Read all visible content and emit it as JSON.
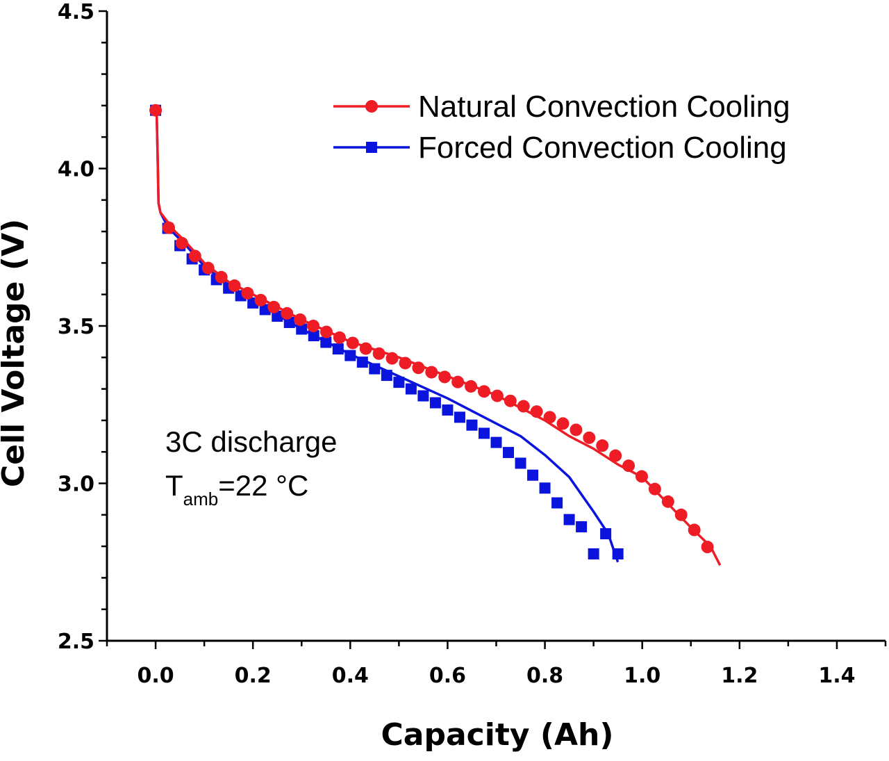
{
  "chart_data": {
    "type": "line",
    "xlabel": "Capacity (Ah)",
    "ylabel": "Cell Voltage (V)",
    "xlim": [
      -0.1,
      1.5
    ],
    "ylim": [
      2.5,
      4.5
    ],
    "x_ticks": [
      0.0,
      0.2,
      0.4,
      0.6,
      0.8,
      1.0,
      1.2,
      1.4
    ],
    "x_tick_labels": [
      "0.0",
      "0.2",
      "0.4",
      "0.6",
      "0.8",
      "1.0",
      "1.2",
      "1.4"
    ],
    "y_ticks": [
      2.5,
      3.0,
      3.5,
      4.0,
      4.5
    ],
    "y_tick_labels": [
      "2.5",
      "3.0",
      "3.5",
      "4.0",
      "4.5"
    ],
    "grid": false,
    "legend_position": "top-right",
    "annotation": {
      "line1": "3C discharge",
      "line2_main": "T",
      "line2_sub": "amb",
      "line2_rest": "=22 °C"
    },
    "series": [
      {
        "name": "Natural Convection Cooling",
        "color": "#ee1c25",
        "marker": "circle",
        "line_x": [
          0.0,
          0.002,
          0.004,
          0.006,
          0.01,
          0.02,
          0.04,
          0.06,
          0.1,
          0.15,
          0.2,
          0.3,
          0.4,
          0.5,
          0.6,
          0.7,
          0.8,
          0.85,
          0.9,
          0.95,
          1.0,
          1.05,
          1.1,
          1.14,
          1.16
        ],
        "line_y": [
          4.19,
          4.19,
          4.05,
          3.89,
          3.86,
          3.84,
          3.8,
          3.77,
          3.7,
          3.64,
          3.6,
          3.52,
          3.45,
          3.4,
          3.34,
          3.28,
          3.2,
          3.15,
          3.11,
          3.06,
          3.02,
          2.94,
          2.86,
          2.8,
          2.74
        ],
        "marker_x": [
          0.0,
          0.027,
          0.054,
          0.081,
          0.108,
          0.135,
          0.162,
          0.189,
          0.216,
          0.243,
          0.27,
          0.297,
          0.324,
          0.351,
          0.378,
          0.405,
          0.432,
          0.459,
          0.486,
          0.513,
          0.54,
          0.567,
          0.594,
          0.621,
          0.648,
          0.675,
          0.702,
          0.729,
          0.756,
          0.783,
          0.81,
          0.837,
          0.864,
          0.891,
          0.918,
          0.945,
          0.972,
          0.999,
          1.026,
          1.053,
          1.08,
          1.107,
          1.134
        ],
        "marker_y": [
          4.185,
          3.812,
          3.763,
          3.722,
          3.684,
          3.655,
          3.628,
          3.604,
          3.582,
          3.56,
          3.54,
          3.52,
          3.5,
          3.481,
          3.463,
          3.446,
          3.428,
          3.412,
          3.397,
          3.382,
          3.367,
          3.353,
          3.338,
          3.322,
          3.308,
          3.292,
          3.278,
          3.262,
          3.245,
          3.228,
          3.21,
          3.19,
          3.17,
          3.145,
          3.12,
          3.088,
          3.056,
          3.022,
          2.982,
          2.942,
          2.9,
          2.852,
          2.798
        ]
      },
      {
        "name": "Forced Convection Cooling",
        "color": "#0a14dc",
        "marker": "square",
        "line_x": [
          0.0,
          0.002,
          0.004,
          0.006,
          0.01,
          0.02,
          0.04,
          0.06,
          0.1,
          0.15,
          0.2,
          0.3,
          0.4,
          0.5,
          0.6,
          0.7,
          0.75,
          0.8,
          0.85,
          0.9,
          0.93,
          0.95
        ],
        "line_y": [
          4.19,
          4.19,
          4.05,
          3.89,
          3.86,
          3.83,
          3.79,
          3.76,
          3.69,
          3.63,
          3.58,
          3.49,
          3.41,
          3.34,
          3.27,
          3.19,
          3.15,
          3.09,
          3.02,
          2.91,
          2.84,
          2.75
        ],
        "marker_x": [
          0.0,
          0.025,
          0.05,
          0.075,
          0.1,
          0.125,
          0.15,
          0.175,
          0.2,
          0.225,
          0.25,
          0.275,
          0.3,
          0.325,
          0.35,
          0.375,
          0.4,
          0.425,
          0.45,
          0.475,
          0.5,
          0.525,
          0.55,
          0.575,
          0.6,
          0.625,
          0.65,
          0.675,
          0.7,
          0.725,
          0.75,
          0.775,
          0.8,
          0.825,
          0.85,
          0.875,
          0.9,
          0.925,
          0.95
        ],
        "marker_y": [
          4.185,
          3.81,
          3.755,
          3.713,
          3.678,
          3.647,
          3.62,
          3.596,
          3.573,
          3.552,
          3.531,
          3.511,
          3.49,
          3.469,
          3.448,
          3.427,
          3.406,
          3.385,
          3.364,
          3.343,
          3.321,
          3.3,
          3.278,
          3.256,
          3.233,
          3.21,
          3.185,
          3.159,
          3.13,
          3.098,
          3.064,
          3.026,
          2.985,
          2.938,
          2.885,
          2.862,
          2.776,
          2.84,
          2.776
        ]
      }
    ]
  }
}
